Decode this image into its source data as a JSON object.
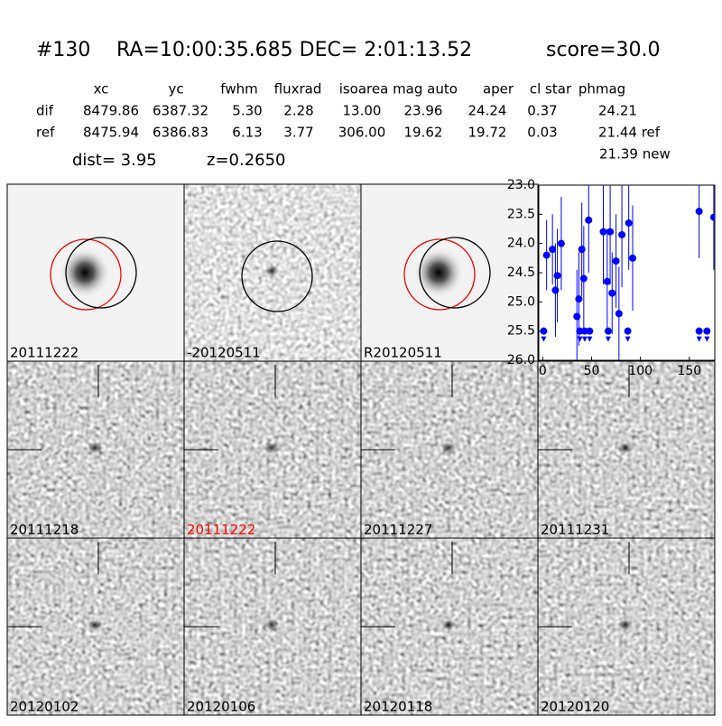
{
  "header": {
    "id": "#130",
    "coords": "RA=10:00:35.685 DEC= 2:01:13.52",
    "score": "score=30.0"
  },
  "table": {
    "columns": [
      "xc",
      "yc",
      "fwhm",
      "fluxrad",
      "isoarea",
      "mag auto",
      "aper",
      "cl star",
      "phmag"
    ],
    "rows": [
      [
        "dif",
        "8479.86",
        "6387.32",
        "5.30",
        "2.28",
        "13.00",
        "23.96",
        "24.24",
        "0.37",
        "24.21"
      ],
      [
        "ref",
        "8475.94",
        "6386.83",
        "6.13",
        "3.77",
        "306.00",
        "19.62",
        "19.72",
        "0.03",
        "21.44 ref"
      ]
    ],
    "extra": "21.39 new"
  },
  "dist": "dist=  3.95",
  "redshift": "z=0.2650",
  "stamps": [
    "20111222",
    "-20120511",
    "R20120511"
  ],
  "epochs": [
    "20111218",
    "20111222",
    "20111227",
    "20111231",
    "20120102",
    "20120106",
    "20120118",
    "20120120"
  ],
  "chart_data": {
    "type": "scatter",
    "color": "#0000ff",
    "x": [
      4,
      10,
      13,
      15,
      19,
      35,
      37,
      40,
      42,
      47,
      62,
      66,
      69,
      71,
      75,
      78,
      81,
      88,
      92,
      160,
      175
    ],
    "values": [
      24.2,
      24.1,
      24.8,
      24.55,
      24.0,
      25.25,
      24.95,
      24.1,
      24.6,
      23.6,
      23.8,
      24.65,
      23.8,
      24.85,
      24.3,
      25.2,
      23.85,
      23.65,
      24.25,
      23.45,
      23.55
    ],
    "errors": [
      0.6,
      0.6,
      0.8,
      0.8,
      0.8,
      0.8,
      0.8,
      0.8,
      0.9,
      0.9,
      0.9,
      0.9,
      0.9,
      0.7,
      0.8,
      0.8,
      0.9,
      0.8,
      0.9,
      0.8,
      0.9
    ],
    "limits_x": [
      1,
      38,
      43,
      48,
      67,
      87,
      160,
      168
    ],
    "limits": [
      25.5,
      25.5,
      25.5,
      25.5,
      25.5,
      25.5,
      25.5,
      25.5
    ],
    "xlim": [
      -4,
      176
    ],
    "ylim": [
      26.0,
      23.0
    ],
    "xticks": [
      0,
      50,
      100,
      150
    ],
    "yticks": [
      {
        "value": 23.0,
        "label": "23.0"
      },
      {
        "value": 23.5,
        "label": "23.5"
      },
      {
        "value": 24.0,
        "label": "24.0"
      },
      {
        "value": 24.5,
        "label": "24.5"
      },
      {
        "value": 25.0,
        "label": "25.0"
      },
      {
        "value": 25.5,
        "label": "25.5"
      },
      {
        "value": 26.0,
        "label": "26.0"
      }
    ]
  }
}
